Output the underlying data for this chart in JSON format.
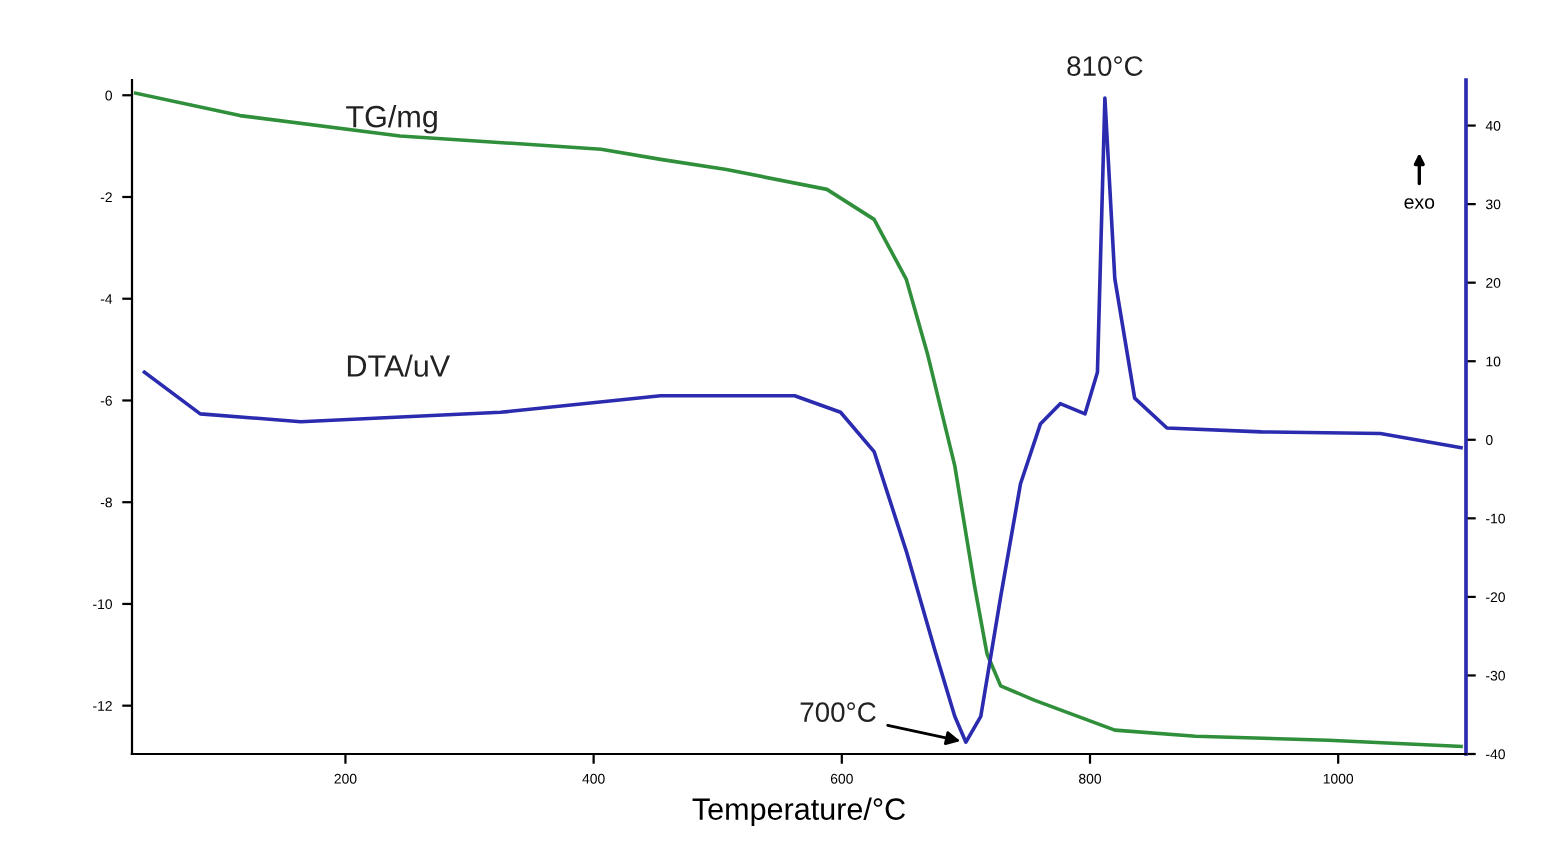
{
  "chart_data": {
    "type": "line",
    "xlabel": "Temperature/°C",
    "xlim": [
      28,
      1103
    ],
    "xticks": [
      200,
      400,
      600,
      800,
      1000
    ],
    "ylim": [
      -12.95,
      0.3
    ],
    "yticks": [
      0,
      -2,
      -4,
      -6,
      -8,
      -10,
      -12
    ],
    "y2lim": [
      -40,
      45.8
    ],
    "y2ticks": [
      40,
      30,
      20,
      10,
      0,
      -10,
      -20,
      -30,
      -40
    ],
    "grid": false,
    "legend": false,
    "series": [
      {
        "name": "TG/mg",
        "color": "#2f8f3a",
        "x": [
          31,
          115,
          244,
          406,
          454,
          507,
          588,
          626,
          652,
          669,
          691,
          707,
          717,
          728,
          755,
          820,
          885,
          992,
          1099
        ],
        "values": [
          0.04,
          -0.4,
          -0.8,
          -1.06,
          -1.26,
          -1.46,
          -1.85,
          -2.44,
          -3.62,
          -5.08,
          -7.28,
          -9.65,
          -10.98,
          -11.61,
          -11.89,
          -12.48,
          -12.6,
          -12.68,
          -12.8
        ]
      },
      {
        "name": "DTA/uV",
        "color": "#2b2bb0",
        "axis": "y2",
        "x": [
          38,
          83,
          164,
          325,
          454,
          562,
          599,
          626,
          652,
          675,
          691,
          700,
          712,
          728,
          744,
          760,
          776,
          796,
          806,
          812,
          820,
          836,
          862,
          938,
          1034,
          1099
        ],
        "values": [
          8.6,
          3.3,
          2.3,
          3.5,
          5.6,
          5.6,
          3.5,
          -1.5,
          -14.2,
          -26.8,
          -35.2,
          -38.5,
          -35.2,
          -20,
          -5.6,
          2.0,
          4.6,
          3.3,
          8.6,
          43.5,
          20.5,
          5.3,
          1.5,
          1.0,
          0.8,
          -1.0
        ]
      }
    ],
    "annotations": [
      "810°C",
      {
        "text": "700°C",
        "x": 700,
        "y": -12.72
      },
      "exo"
    ]
  }
}
